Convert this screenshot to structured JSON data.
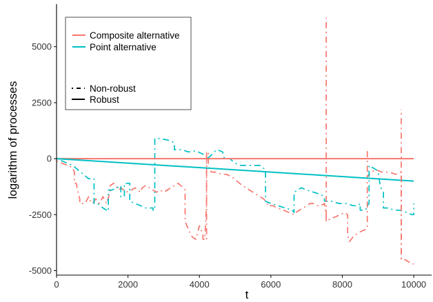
{
  "chart_data": {
    "type": "line",
    "xlabel": "t",
    "ylabel": "logarithm of processes",
    "xlim": [
      0,
      10500
    ],
    "ylim": [
      -5200,
      6900
    ],
    "x_ticks": [
      0,
      2000,
      4000,
      6000,
      8000,
      10000
    ],
    "y_ticks": [
      -5000,
      -2500,
      0,
      2500,
      5000
    ],
    "x_tick_labels": [
      "0",
      "2000",
      "4000",
      "6000",
      "8000",
      "10000"
    ],
    "y_tick_labels": [
      "-5000",
      "-2500",
      "0",
      "2500",
      "5000"
    ],
    "grid": false,
    "legend": {
      "position": "top-left",
      "colour_entries": [
        {
          "label": "Composite alternative",
          "color": "#f8766d"
        },
        {
          "label": "Point alternative",
          "color": "#00bfc4"
        }
      ],
      "linetype_entries": [
        {
          "label": "Non-robust",
          "dash": "dotdash"
        },
        {
          "label": "Robust",
          "dash": "solid"
        }
      ]
    },
    "series": [
      {
        "name": "Composite alternative / Robust",
        "color": "#f8766d",
        "dash": "solid",
        "points": [
          [
            0,
            0
          ],
          [
            10000,
            0
          ]
        ]
      },
      {
        "name": "Point alternative / Robust",
        "color": "#00bfc4",
        "dash": "solid",
        "points": [
          [
            0,
            0
          ],
          [
            10000,
            -1000
          ]
        ]
      },
      {
        "name": "Point alternative / Non-robust",
        "color": "#00bfc4",
        "dash": "dotdash",
        "points": [
          [
            0,
            0
          ],
          [
            150,
            -100
          ],
          [
            300,
            -200
          ],
          [
            450,
            -300
          ],
          [
            600,
            -500
          ],
          [
            750,
            -700
          ],
          [
            900,
            -900
          ],
          [
            1050,
            -900
          ],
          [
            1050,
            -2000
          ],
          [
            1150,
            -2000
          ],
          [
            1300,
            -2200
          ],
          [
            1450,
            -2350
          ],
          [
            1450,
            -1400
          ],
          [
            1550,
            -1400
          ],
          [
            1700,
            -1300
          ],
          [
            1800,
            -1200
          ],
          [
            1800,
            -1700
          ],
          [
            1900,
            -1700
          ],
          [
            1900,
            -1100
          ],
          [
            2050,
            -1100
          ],
          [
            2050,
            -1900
          ],
          [
            2200,
            -2000
          ],
          [
            2350,
            -2100
          ],
          [
            2500,
            -2200
          ],
          [
            2700,
            -2200
          ],
          [
            2700,
            -2300
          ],
          [
            2750,
            -2300
          ],
          [
            2750,
            900
          ],
          [
            2900,
            900
          ],
          [
            3050,
            850
          ],
          [
            3200,
            800
          ],
          [
            3300,
            700
          ],
          [
            3300,
            400
          ],
          [
            3500,
            400
          ],
          [
            3700,
            300
          ],
          [
            3900,
            350
          ],
          [
            4100,
            200
          ],
          [
            4100,
            0
          ],
          [
            4200,
            0
          ],
          [
            4300,
            100
          ],
          [
            4400,
            300
          ],
          [
            4500,
            400
          ],
          [
            4650,
            300
          ],
          [
            4700,
            0
          ],
          [
            4850,
            0
          ],
          [
            5000,
            -200
          ],
          [
            5150,
            -300
          ],
          [
            5300,
            -300
          ],
          [
            5500,
            -300
          ],
          [
            5700,
            -300
          ],
          [
            5850,
            -500
          ],
          [
            5850,
            -1900
          ],
          [
            6000,
            -2000
          ],
          [
            6200,
            -2100
          ],
          [
            6400,
            -2200
          ],
          [
            6600,
            -2300
          ],
          [
            6650,
            -2400
          ],
          [
            6650,
            -1500
          ],
          [
            6750,
            -1400
          ],
          [
            6850,
            -1300
          ],
          [
            7000,
            -1400
          ],
          [
            7200,
            -1500
          ],
          [
            7400,
            -1600
          ],
          [
            7500,
            -1700
          ],
          [
            7500,
            -1900
          ],
          [
            7700,
            -1900
          ],
          [
            7900,
            -2000
          ],
          [
            8100,
            -2000
          ],
          [
            8300,
            -2100
          ],
          [
            8450,
            -2100
          ],
          [
            8500,
            -2000
          ],
          [
            8500,
            -2300
          ],
          [
            8650,
            -2300
          ],
          [
            8700,
            -2100
          ],
          [
            8750,
            -2000
          ],
          [
            8750,
            -300
          ],
          [
            8850,
            -400
          ],
          [
            8950,
            -500
          ],
          [
            9000,
            -600
          ],
          [
            9050,
            -1100
          ],
          [
            9100,
            -1400
          ],
          [
            9150,
            -1500
          ],
          [
            9150,
            -2200
          ],
          [
            9300,
            -2200
          ],
          [
            9450,
            -2300
          ],
          [
            9600,
            -2300
          ],
          [
            9800,
            -2400
          ],
          [
            9950,
            -2500
          ],
          [
            10000,
            -2500
          ],
          [
            10000,
            -2000
          ]
        ]
      },
      {
        "name": "Composite alternative / Non-robust",
        "color": "#f8766d",
        "dash": "dotdash",
        "points": [
          [
            0,
            -100
          ],
          [
            150,
            -200
          ],
          [
            300,
            -300
          ],
          [
            450,
            -400
          ],
          [
            500,
            -600
          ],
          [
            500,
            -1100
          ],
          [
            550,
            -1100
          ],
          [
            600,
            -1500
          ],
          [
            650,
            -1800
          ],
          [
            650,
            -2000
          ],
          [
            800,
            -2000
          ],
          [
            900,
            -1700
          ],
          [
            950,
            -1900
          ],
          [
            1000,
            -2000
          ],
          [
            1100,
            -1800
          ],
          [
            1200,
            -2000
          ],
          [
            1300,
            -1700
          ],
          [
            1400,
            -2000
          ],
          [
            1500,
            -1500
          ],
          [
            1500,
            -1200
          ],
          [
            1600,
            -1100
          ],
          [
            1700,
            -1300
          ],
          [
            1750,
            -1400
          ],
          [
            1800,
            -1300
          ],
          [
            1950,
            -1500
          ],
          [
            2100,
            -1400
          ],
          [
            2200,
            -1300
          ],
          [
            2350,
            -1500
          ],
          [
            2400,
            -1300
          ],
          [
            2500,
            -1200
          ],
          [
            2600,
            -1300
          ],
          [
            2700,
            -1400
          ],
          [
            2800,
            -1500
          ],
          [
            2900,
            -1400
          ],
          [
            3000,
            -1500
          ],
          [
            3100,
            -1400
          ],
          [
            3200,
            -1300
          ],
          [
            3300,
            -1200
          ],
          [
            3400,
            -1100
          ],
          [
            3550,
            -1300
          ],
          [
            3600,
            -1400
          ],
          [
            3600,
            -2800
          ],
          [
            3700,
            -3200
          ],
          [
            3800,
            -3500
          ],
          [
            3900,
            -3600
          ],
          [
            4000,
            -3000
          ],
          [
            4100,
            -3400
          ],
          [
            4100,
            -3600
          ],
          [
            4150,
            -3600
          ],
          [
            4200,
            -2000
          ],
          [
            4200,
            300
          ],
          [
            4250,
            300
          ],
          [
            4250,
            -500
          ],
          [
            4350,
            -600
          ],
          [
            4500,
            -600
          ],
          [
            4600,
            -700
          ],
          [
            4750,
            -700
          ],
          [
            4900,
            -800
          ],
          [
            5050,
            -1000
          ],
          [
            5200,
            -1200
          ],
          [
            5300,
            -1300
          ],
          [
            5400,
            -1400
          ],
          [
            5500,
            -1500
          ],
          [
            5600,
            -1600
          ],
          [
            5700,
            -1700
          ],
          [
            5800,
            -1800
          ],
          [
            5900,
            -2000
          ],
          [
            5900,
            -2100
          ],
          [
            6050,
            -2100
          ],
          [
            6200,
            -2200
          ],
          [
            6350,
            -2300
          ],
          [
            6500,
            -2400
          ],
          [
            6650,
            -2500
          ],
          [
            6700,
            -2400
          ],
          [
            6800,
            -2300
          ],
          [
            6900,
            -2200
          ],
          [
            7000,
            -2100
          ],
          [
            7100,
            -2000
          ],
          [
            7200,
            -2000
          ],
          [
            7300,
            -2100
          ],
          [
            7400,
            -2100
          ],
          [
            7500,
            -2000
          ],
          [
            7550,
            -2500
          ],
          [
            7550,
            -2800
          ],
          [
            7650,
            -2700
          ],
          [
            7800,
            -2600
          ],
          [
            7950,
            -2500
          ],
          [
            8050,
            -2400
          ],
          [
            8150,
            -2500
          ],
          [
            8150,
            -3400
          ],
          [
            8200,
            -3700
          ],
          [
            8300,
            -3500
          ],
          [
            8450,
            -3300
          ],
          [
            8600,
            -3200
          ],
          [
            8700,
            -3100
          ],
          [
            8700,
            -800
          ],
          [
            8800,
            -600
          ],
          [
            8950,
            -500
          ],
          [
            9100,
            -600
          ],
          [
            9300,
            -600
          ],
          [
            9500,
            -700
          ],
          [
            9650,
            -600
          ],
          [
            9650,
            -4500
          ],
          [
            9750,
            -4500
          ],
          [
            9850,
            -4600
          ],
          [
            9950,
            -4700
          ],
          [
            10000,
            -4700
          ]
        ]
      }
    ],
    "spikes": [
      {
        "x": 7550,
        "from": -2800,
        "to": 6300,
        "color": "#f8766d"
      },
      {
        "x": 8700,
        "from": -800,
        "to": 400,
        "color": "#f8766d"
      },
      {
        "x": 9650,
        "from": -4500,
        "to": 2200,
        "color": "#f8766d"
      },
      {
        "x": 4200,
        "from": -3600,
        "to": 300,
        "color": "#f8766d"
      }
    ]
  }
}
